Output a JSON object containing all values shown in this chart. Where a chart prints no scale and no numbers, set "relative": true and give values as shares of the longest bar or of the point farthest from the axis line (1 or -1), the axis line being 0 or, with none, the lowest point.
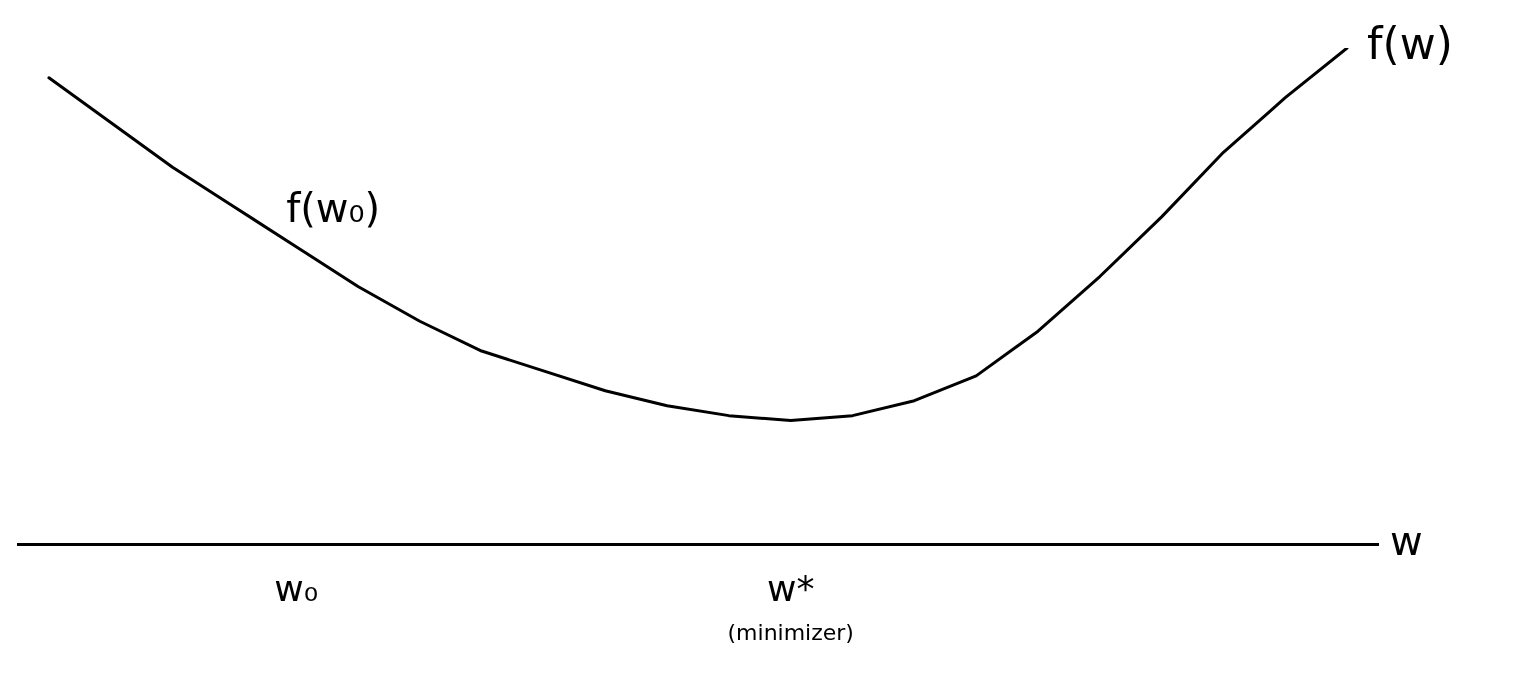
{
  "chart_data": {
    "type": "line",
    "relative": true,
    "xlabel": "w",
    "categories": [
      null,
      null,
      null,
      null,
      "w₀",
      null,
      null,
      null,
      null,
      null,
      null,
      null,
      "w*",
      null,
      null,
      null,
      null,
      null,
      null,
      null,
      null,
      null
    ],
    "series": [
      {
        "name": "f(w)",
        "color": "#000000",
        "values": [
          0.94,
          0.85,
          0.76,
          0.68,
          0.6,
          0.52,
          0.45,
          0.39,
          0.35,
          0.31,
          0.28,
          0.26,
          0.25,
          0.26,
          0.29,
          0.34,
          0.43,
          0.54,
          0.66,
          0.79,
          0.9,
          1.0
        ]
      }
    ],
    "annotations": [
      {
        "text": "f(w₀)",
        "x": "w₀",
        "y": 0.6
      },
      "(minimizer)"
    ],
    "marker": "none",
    "grid": false,
    "legend": false
  }
}
